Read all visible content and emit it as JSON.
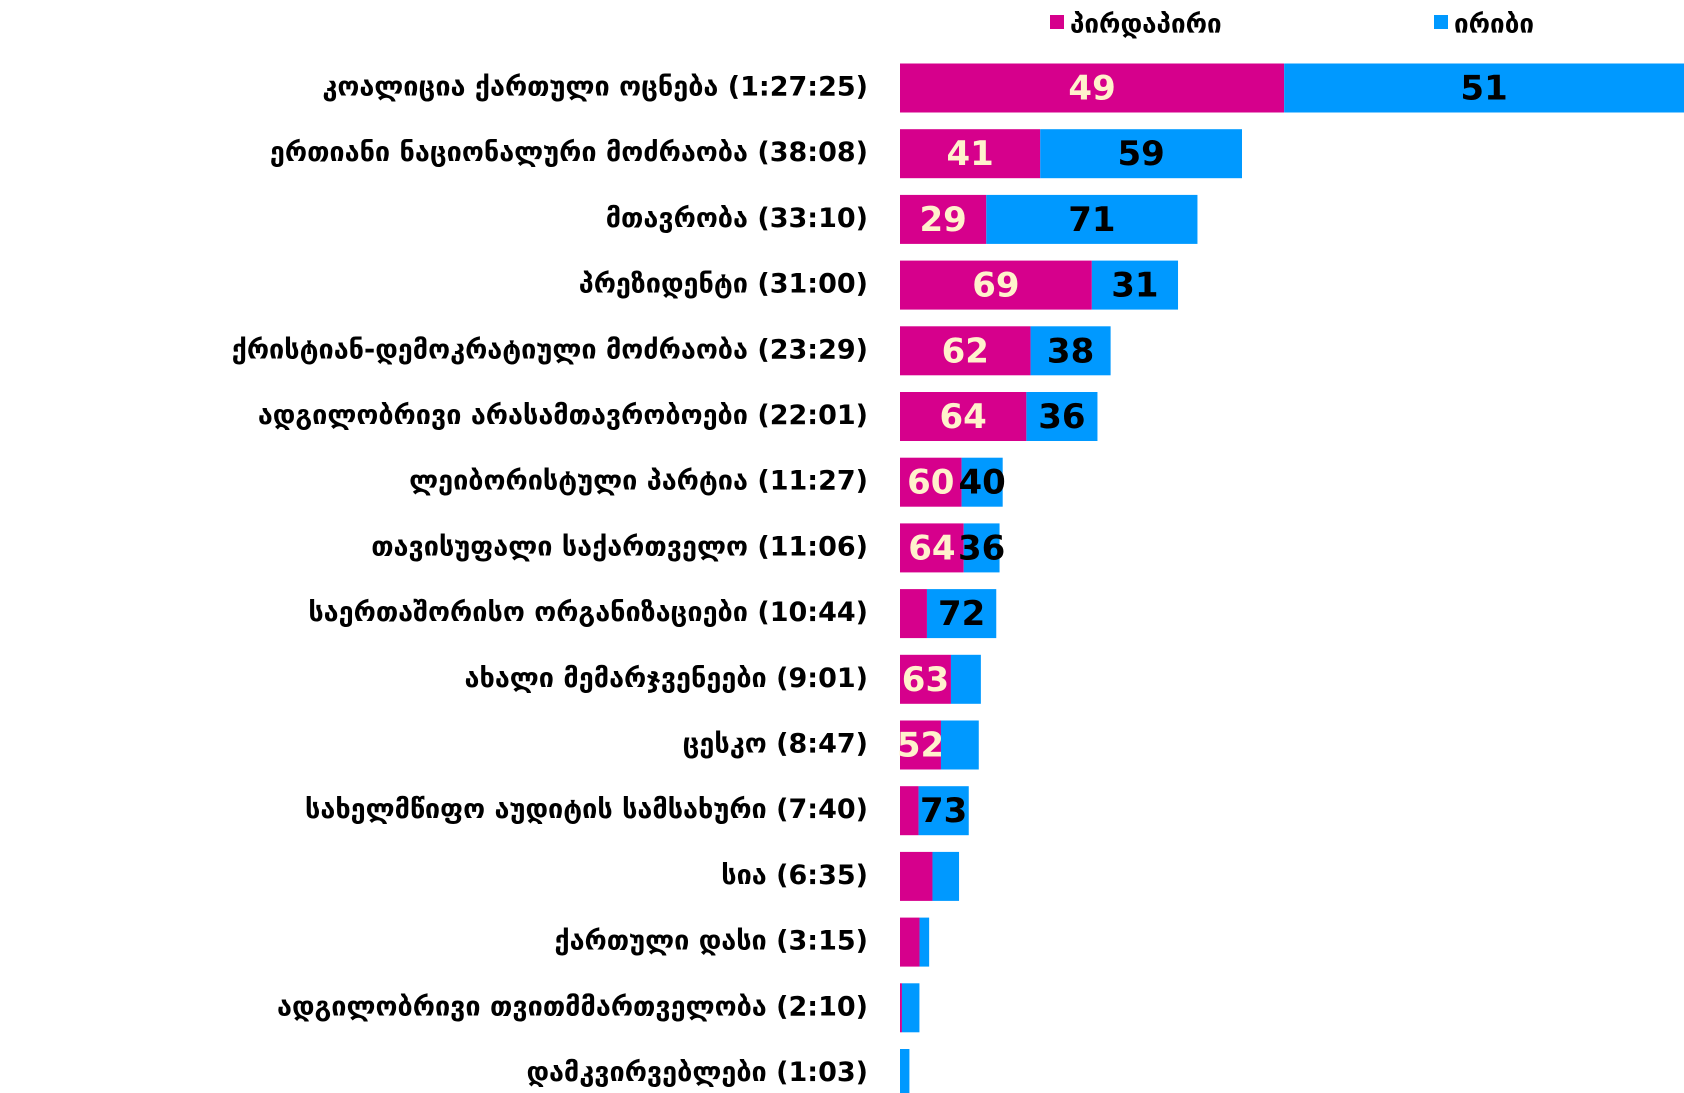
{
  "chart_data": {
    "type": "bar",
    "categories": [
      "კოალიცია ქართული ოცნება (1:27:25)",
      "ერთიანი ნაციონალური მოძრაობა (38:08)",
      "მთავრობა (33:10)",
      "პრეზიდენტი (31:00)",
      "ქრისტიან-დემოკრატიული მოძრაობა (23:29)",
      "ადგილობრივი არასამთავრობოები (22:01)",
      "ლეიბორისტული პარტია (11:27)",
      "თავისუფალი საქართველო (11:06)",
      "საერთაშორისო ორგანიზაციები (10:44)",
      "ახალი მემარჯვენეები (9:01)",
      "ცესკო (8:47)",
      "სახელმწიფო აუდიტის სამსახური (7:40)",
      "სია (6:35)",
      "ქართული დასი (3:15)",
      "ადგილობრივი თვითმმართველობა (2:10)",
      "დამკვირვებლები (1:03)"
    ],
    "series": [
      {
        "name": "პირდაპირი",
        "color": "#d6008c",
        "label_color": "#fff2cc",
        "values": [
          49,
          41,
          29,
          69,
          62,
          64,
          60,
          64,
          28,
          63,
          52,
          27,
          55,
          67,
          10,
          0
        ],
        "value_labels": [
          "49",
          "41",
          "29",
          "69",
          "62",
          "64",
          "60",
          "64",
          null,
          "63",
          "52",
          null,
          null,
          null,
          null,
          null
        ]
      },
      {
        "name": "ირიბი",
        "color": "#0099ff",
        "label_color": "#000000",
        "values": [
          51,
          59,
          71,
          31,
          38,
          36,
          40,
          36,
          72,
          37,
          48,
          73,
          45,
          33,
          90,
          100
        ],
        "value_labels": [
          "51",
          "59",
          "71",
          "31",
          "38",
          "36",
          "40",
          "36",
          "72",
          null,
          null,
          "73",
          null,
          null,
          null,
          null
        ]
      }
    ],
    "stacked": true,
    "orientation": "horizontal"
  }
}
